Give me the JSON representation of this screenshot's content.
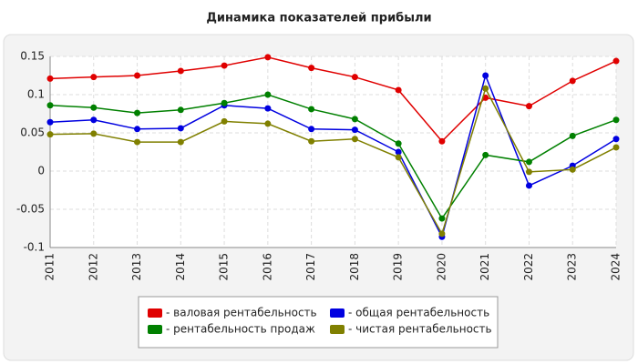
{
  "chart_data": {
    "type": "line",
    "title": "Динамика показателей прибыли",
    "categories": [
      "2011",
      "2012",
      "2013",
      "2014",
      "2015",
      "2016",
      "2017",
      "2018",
      "2019",
      "2020",
      "2021",
      "2022",
      "2023",
      "2024"
    ],
    "series": [
      {
        "name": "- валовая рентабельность",
        "color": "#e00000",
        "values": [
          0.121,
          0.123,
          0.125,
          0.131,
          0.138,
          0.149,
          0.135,
          0.123,
          0.106,
          0.039,
          0.096,
          0.085,
          0.118,
          0.144
        ]
      },
      {
        "name": "- общая рентабельность",
        "color": "#0000e0",
        "values": [
          0.064,
          0.067,
          0.055,
          0.056,
          0.086,
          0.082,
          0.055,
          0.054,
          0.025,
          -0.086,
          0.125,
          -0.019,
          0.007,
          0.042
        ]
      },
      {
        "name": "- рентабельность продаж",
        "color": "#008000",
        "values": [
          0.086,
          0.083,
          0.076,
          0.08,
          0.089,
          0.1,
          0.081,
          0.068,
          0.036,
          -0.062,
          0.021,
          0.012,
          0.046,
          0.067
        ]
      },
      {
        "name": "- чистая рентабельность",
        "color": "#808000",
        "values": [
          0.048,
          0.049,
          0.038,
          0.038,
          0.065,
          0.062,
          0.039,
          0.042,
          0.018,
          -0.082,
          0.108,
          -0.001,
          0.002,
          0.031
        ]
      }
    ],
    "ylim": [
      -0.1,
      0.15
    ],
    "yticks": [
      0.15,
      0.1,
      0.05,
      0,
      -0.05,
      -0.1
    ],
    "grid": true
  }
}
